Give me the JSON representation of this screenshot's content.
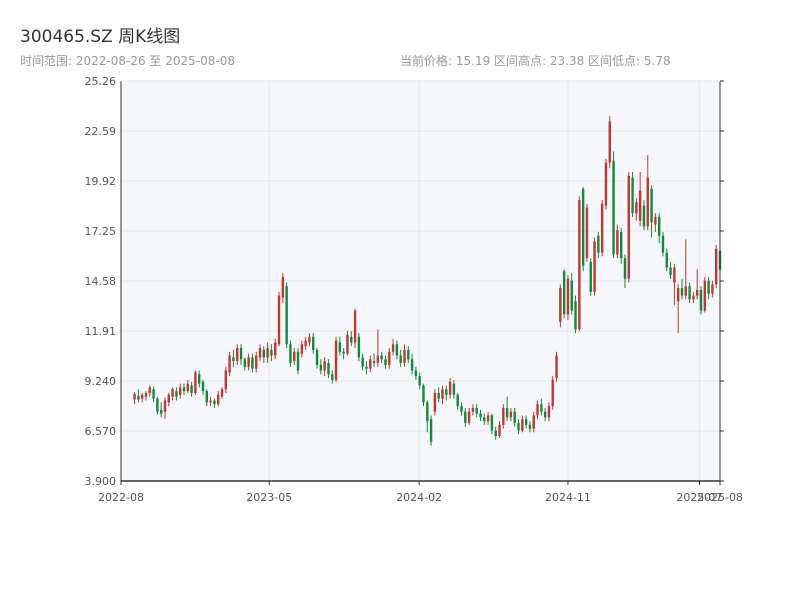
{
  "header": {
    "title": "300465.SZ 周K线图",
    "range_text": "时间范围: 2022-08-26 至 2025-08-08",
    "stats_text": "当前价格: 15.19  区间高点: 23.38  区间低点: 5.78"
  },
  "colors": {
    "up": "#c23531",
    "down": "#0f8a3c",
    "plot_bg": "#f5f7fa",
    "grid": "#e4e7ed",
    "axis": "#333333",
    "tick_text": "#555555"
  },
  "chart_data": {
    "type": "candlestick",
    "title": "300465.SZ 周K线图",
    "x_start": "2022-08-26",
    "x_end": "2025-08-08",
    "ylim": [
      3.9,
      25.26
    ],
    "yticks": [
      "3.900",
      "6.570",
      "9.240",
      "11.91",
      "14.58",
      "17.25",
      "19.92",
      "22.59",
      "25.26"
    ],
    "xticks": [
      {
        "date": "2022-08-01",
        "label": "2022-08"
      },
      {
        "date": "2023-05-01",
        "label": "2023-05"
      },
      {
        "date": "2024-02-01",
        "label": "2024-02"
      },
      {
        "date": "2024-11-01",
        "label": "2024-11"
      },
      {
        "date": "2025-07-01",
        "label": "2025-07"
      },
      {
        "date": "2025-08-08",
        "label": "2025-08"
      }
    ],
    "grid": true,
    "candles": [
      [
        "2022-08-26",
        8.25,
        8.55,
        8.65,
        8.0
      ],
      [
        "2022-09-02",
        8.45,
        8.25,
        8.8,
        8.1
      ],
      [
        "2022-09-09",
        8.3,
        8.5,
        8.6,
        8.1
      ],
      [
        "2022-09-16",
        8.4,
        8.6,
        8.7,
        8.2
      ],
      [
        "2022-09-23",
        8.6,
        8.9,
        9.0,
        8.4
      ],
      [
        "2022-09-30",
        8.8,
        8.3,
        8.95,
        8.1
      ],
      [
        "2022-10-07",
        8.3,
        7.6,
        8.4,
        7.45
      ],
      [
        "2022-10-14",
        7.7,
        7.5,
        8.1,
        7.3
      ],
      [
        "2022-10-21",
        7.6,
        8.2,
        8.35,
        7.2
      ],
      [
        "2022-10-28",
        8.1,
        8.5,
        8.6,
        7.9
      ],
      [
        "2022-11-04",
        8.4,
        8.8,
        8.9,
        8.2
      ],
      [
        "2022-11-11",
        8.7,
        8.4,
        8.9,
        8.2
      ],
      [
        "2022-11-18",
        8.5,
        8.9,
        9.1,
        8.3
      ],
      [
        "2022-11-25",
        8.9,
        8.7,
        9.1,
        8.5
      ],
      [
        "2022-12-02",
        8.7,
        9.1,
        9.3,
        8.6
      ],
      [
        "2022-12-09",
        9.0,
        8.6,
        9.2,
        8.4
      ],
      [
        "2022-12-16",
        8.6,
        9.7,
        9.8,
        8.5
      ],
      [
        "2022-12-23",
        9.6,
        9.1,
        9.8,
        8.9
      ],
      [
        "2022-12-30",
        9.2,
        8.7,
        9.3,
        8.5
      ],
      [
        "2023-01-06",
        8.7,
        8.1,
        8.8,
        7.9
      ],
      [
        "2023-01-13",
        8.1,
        8.2,
        8.4,
        7.9
      ],
      [
        "2023-01-20",
        8.2,
        8.0,
        8.3,
        7.8
      ],
      [
        "2023-01-27",
        8.0,
        8.5,
        8.7,
        7.9
      ],
      [
        "2023-02-03",
        8.4,
        8.8,
        8.9,
        8.3
      ],
      [
        "2023-02-10",
        8.8,
        9.8,
        10.0,
        8.6
      ],
      [
        "2023-02-17",
        9.7,
        10.6,
        10.8,
        9.5
      ],
      [
        "2023-02-24",
        10.5,
        10.3,
        10.9,
        10.0
      ],
      [
        "2023-03-03",
        10.3,
        11.0,
        11.2,
        10.1
      ],
      [
        "2023-03-10",
        11.0,
        10.4,
        11.2,
        10.1
      ],
      [
        "2023-03-17",
        10.4,
        10.0,
        10.5,
        9.8
      ],
      [
        "2023-03-24",
        10.0,
        10.5,
        10.7,
        9.8
      ],
      [
        "2023-03-31",
        10.5,
        9.9,
        10.7,
        9.7
      ],
      [
        "2023-04-07",
        9.9,
        10.6,
        10.8,
        9.7
      ],
      [
        "2023-04-14",
        10.5,
        11.0,
        11.2,
        10.3
      ],
      [
        "2023-04-21",
        10.9,
        10.5,
        11.1,
        10.2
      ],
      [
        "2023-04-28",
        10.5,
        11.0,
        11.3,
        10.2
      ],
      [
        "2023-05-05",
        10.9,
        10.6,
        11.2,
        10.3
      ],
      [
        "2023-05-12",
        10.6,
        11.3,
        11.5,
        10.4
      ],
      [
        "2023-05-19",
        11.2,
        13.8,
        14.0,
        11.1
      ],
      [
        "2023-05-26",
        13.7,
        14.8,
        15.0,
        13.4
      ],
      [
        "2023-06-02",
        14.3,
        11.2,
        14.5,
        11.0
      ],
      [
        "2023-06-09",
        11.2,
        10.2,
        11.4,
        10.0
      ],
      [
        "2023-06-16",
        10.3,
        10.8,
        11.0,
        10.1
      ],
      [
        "2023-06-23",
        10.8,
        9.8,
        11.0,
        9.6
      ],
      [
        "2023-06-30",
        10.7,
        11.2,
        11.4,
        10.5
      ],
      [
        "2023-07-07",
        11.1,
        11.4,
        11.6,
        10.9
      ],
      [
        "2023-07-14",
        11.3,
        11.6,
        11.8,
        11.1
      ],
      [
        "2023-07-21",
        11.6,
        10.9,
        11.8,
        10.7
      ],
      [
        "2023-07-28",
        10.9,
        10.1,
        11.0,
        9.9
      ],
      [
        "2023-08-04",
        10.1,
        9.8,
        10.4,
        9.6
      ],
      [
        "2023-08-11",
        9.8,
        10.3,
        10.5,
        9.5
      ],
      [
        "2023-08-18",
        10.2,
        9.6,
        10.4,
        9.4
      ],
      [
        "2023-08-25",
        9.6,
        9.3,
        9.8,
        9.1
      ],
      [
        "2023-09-01",
        9.3,
        11.4,
        11.6,
        9.2
      ],
      [
        "2023-09-08",
        11.3,
        10.8,
        11.6,
        10.6
      ],
      [
        "2023-09-15",
        10.8,
        10.7,
        11.0,
        10.4
      ],
      [
        "2023-09-22",
        10.7,
        11.7,
        11.9,
        10.6
      ],
      [
        "2023-09-29",
        11.6,
        11.3,
        11.9,
        11.1
      ],
      [
        "2023-10-06",
        11.3,
        13.0,
        13.1,
        11.0
      ],
      [
        "2023-10-13",
        11.6,
        10.5,
        11.8,
        10.3
      ],
      [
        "2023-10-20",
        10.5,
        10.0,
        10.7,
        9.8
      ],
      [
        "2023-10-27",
        10.0,
        9.9,
        10.3,
        9.6
      ],
      [
        "2023-11-03",
        9.9,
        10.4,
        10.6,
        9.7
      ],
      [
        "2023-11-10",
        10.3,
        10.2,
        10.7,
        10.0
      ],
      [
        "2023-11-17",
        10.2,
        10.6,
        12.0,
        10.0
      ],
      [
        "2023-11-24",
        10.6,
        10.4,
        10.8,
        10.2
      ],
      [
        "2023-12-01",
        10.4,
        10.1,
        10.6,
        9.9
      ],
      [
        "2023-12-08",
        10.1,
        10.8,
        11.0,
        9.9
      ],
      [
        "2023-12-15",
        10.8,
        11.2,
        11.5,
        10.6
      ],
      [
        "2023-12-22",
        11.2,
        10.6,
        11.4,
        10.4
      ],
      [
        "2023-12-29",
        10.6,
        10.2,
        10.9,
        10.0
      ],
      [
        "2024-01-05",
        10.2,
        10.9,
        11.2,
        10.0
      ],
      [
        "2024-01-12",
        10.9,
        10.4,
        11.1,
        10.2
      ],
      [
        "2024-01-19",
        10.4,
        9.8,
        10.7,
        9.6
      ],
      [
        "2024-01-26",
        9.8,
        9.5,
        10.0,
        9.3
      ],
      [
        "2024-02-02",
        9.5,
        9.0,
        9.7,
        8.8
      ],
      [
        "2024-02-09",
        9.0,
        8.1,
        9.1,
        7.9
      ],
      [
        "2024-02-16",
        8.1,
        7.1,
        8.2,
        6.5
      ],
      [
        "2024-02-23",
        7.2,
        6.0,
        7.4,
        5.78
      ],
      [
        "2024-03-01",
        7.6,
        8.6,
        8.8,
        7.4
      ],
      [
        "2024-03-08",
        8.6,
        8.3,
        8.9,
        8.1
      ],
      [
        "2024-03-15",
        8.3,
        8.8,
        9.0,
        8.0
      ],
      [
        "2024-03-22",
        8.8,
        8.5,
        9.0,
        8.2
      ],
      [
        "2024-03-29",
        8.5,
        9.2,
        9.4,
        8.3
      ],
      [
        "2024-04-05",
        9.1,
        8.5,
        9.3,
        8.3
      ],
      [
        "2024-04-12",
        8.5,
        7.9,
        8.6,
        7.7
      ],
      [
        "2024-04-19",
        7.9,
        7.6,
        8.1,
        7.4
      ],
      [
        "2024-04-26",
        7.6,
        7.0,
        7.8,
        6.8
      ],
      [
        "2024-05-03",
        7.0,
        7.6,
        7.8,
        6.9
      ],
      [
        "2024-05-10",
        7.6,
        7.8,
        8.0,
        7.4
      ],
      [
        "2024-05-17",
        7.8,
        7.5,
        8.0,
        7.3
      ],
      [
        "2024-05-24",
        7.5,
        7.3,
        7.7,
        7.1
      ],
      [
        "2024-05-31",
        7.3,
        7.1,
        7.5,
        6.9
      ],
      [
        "2024-06-07",
        7.1,
        7.4,
        7.6,
        6.9
      ],
      [
        "2024-06-14",
        7.4,
        6.6,
        7.5,
        6.4
      ],
      [
        "2024-06-21",
        6.6,
        6.3,
        6.8,
        6.1
      ],
      [
        "2024-06-28",
        6.3,
        6.9,
        7.1,
        6.2
      ],
      [
        "2024-07-05",
        6.9,
        7.8,
        8.0,
        6.7
      ],
      [
        "2024-07-12",
        7.8,
        7.3,
        8.4,
        7.1
      ],
      [
        "2024-07-19",
        7.3,
        7.6,
        7.8,
        7.1
      ],
      [
        "2024-07-26",
        7.6,
        7.0,
        7.8,
        6.8
      ],
      [
        "2024-08-02",
        7.0,
        6.6,
        7.2,
        6.4
      ],
      [
        "2024-08-09",
        6.6,
        7.2,
        7.4,
        6.5
      ],
      [
        "2024-08-16",
        7.2,
        6.9,
        7.4,
        6.7
      ],
      [
        "2024-08-23",
        6.9,
        6.7,
        7.1,
        6.5
      ],
      [
        "2024-08-30",
        6.7,
        7.4,
        7.6,
        6.5
      ],
      [
        "2024-09-06",
        7.4,
        8.0,
        8.2,
        7.2
      ],
      [
        "2024-09-13",
        8.0,
        7.6,
        8.3,
        7.4
      ],
      [
        "2024-09-20",
        7.6,
        7.3,
        7.8,
        7.1
      ],
      [
        "2024-09-27",
        7.3,
        7.9,
        8.1,
        7.1
      ],
      [
        "2024-10-04",
        7.9,
        9.3,
        9.5,
        7.7
      ],
      [
        "2024-10-11",
        9.4,
        10.6,
        10.8,
        9.2
      ],
      [
        "2024-10-18",
        12.4,
        14.2,
        14.4,
        12.1
      ],
      [
        "2024-10-25",
        15.1,
        12.8,
        15.2,
        12.6
      ],
      [
        "2024-11-01",
        12.8,
        14.7,
        14.9,
        12.5
      ],
      [
        "2024-11-08",
        14.6,
        13.0,
        15.0,
        12.8
      ],
      [
        "2024-11-15",
        13.5,
        12.0,
        13.8,
        11.8
      ],
      [
        "2024-11-22",
        12.0,
        18.9,
        19.1,
        11.9
      ],
      [
        "2024-11-29",
        19.5,
        15.4,
        19.6,
        15.1
      ],
      [
        "2024-12-06",
        15.8,
        18.5,
        18.7,
        15.6
      ],
      [
        "2024-12-13",
        15.6,
        14.0,
        15.8,
        13.8
      ],
      [
        "2024-12-20",
        14.0,
        16.7,
        16.9,
        13.8
      ],
      [
        "2024-12-27",
        17.0,
        16.1,
        17.2,
        15.8
      ],
      [
        "2025-01-03",
        16.1,
        18.7,
        18.9,
        15.9
      ],
      [
        "2025-01-10",
        18.6,
        20.9,
        21.1,
        18.4
      ],
      [
        "2025-01-17",
        20.9,
        23.1,
        23.38,
        20.6
      ],
      [
        "2025-01-24",
        21.0,
        16.0,
        21.5,
        15.8
      ],
      [
        "2025-01-31",
        16.0,
        17.3,
        17.6,
        15.8
      ],
      [
        "2025-02-07",
        17.2,
        15.8,
        17.4,
        15.5
      ],
      [
        "2025-02-14",
        15.8,
        14.7,
        16.0,
        14.2
      ],
      [
        "2025-02-21",
        14.7,
        20.2,
        20.4,
        14.5
      ],
      [
        "2025-02-28",
        20.1,
        18.2,
        20.4,
        18.0
      ],
      [
        "2025-03-07",
        18.2,
        18.8,
        19.0,
        17.8
      ],
      [
        "2025-03-14",
        17.8,
        19.4,
        20.4,
        17.5
      ],
      [
        "2025-03-21",
        18.6,
        17.5,
        18.9,
        17.3
      ],
      [
        "2025-03-28",
        17.5,
        20.1,
        21.3,
        17.3
      ],
      [
        "2025-04-04",
        19.5,
        17.7,
        19.7,
        16.9
      ],
      [
        "2025-04-11",
        17.6,
        18.0,
        18.2,
        17.2
      ],
      [
        "2025-04-18",
        18.0,
        17.0,
        18.2,
        16.6
      ],
      [
        "2025-04-25",
        17.0,
        16.1,
        17.2,
        15.9
      ],
      [
        "2025-05-02",
        16.1,
        15.3,
        16.3,
        15.1
      ],
      [
        "2025-05-09",
        15.3,
        14.9,
        15.6,
        14.7
      ],
      [
        "2025-05-16",
        14.5,
        15.3,
        15.5,
        13.3
      ],
      [
        "2025-05-23",
        13.5,
        14.2,
        14.4,
        11.8
      ],
      [
        "2025-05-30",
        14.2,
        13.8,
        14.7,
        13.6
      ],
      [
        "2025-06-06",
        13.8,
        14.3,
        16.8,
        13.6
      ],
      [
        "2025-06-13",
        14.3,
        13.6,
        14.5,
        13.4
      ],
      [
        "2025-06-20",
        13.6,
        13.8,
        14.0,
        13.4
      ],
      [
        "2025-06-27",
        13.8,
        14.1,
        15.2,
        13.6
      ],
      [
        "2025-07-04",
        14.1,
        13.0,
        14.3,
        12.8
      ],
      [
        "2025-07-11",
        13.0,
        14.6,
        14.8,
        12.9
      ],
      [
        "2025-07-18",
        14.6,
        13.9,
        14.8,
        13.6
      ],
      [
        "2025-07-25",
        13.9,
        14.4,
        14.6,
        13.7
      ],
      [
        "2025-08-01",
        14.4,
        16.3,
        16.5,
        14.2
      ],
      [
        "2025-08-08",
        16.2,
        15.19,
        16.4,
        14.9
      ]
    ]
  }
}
